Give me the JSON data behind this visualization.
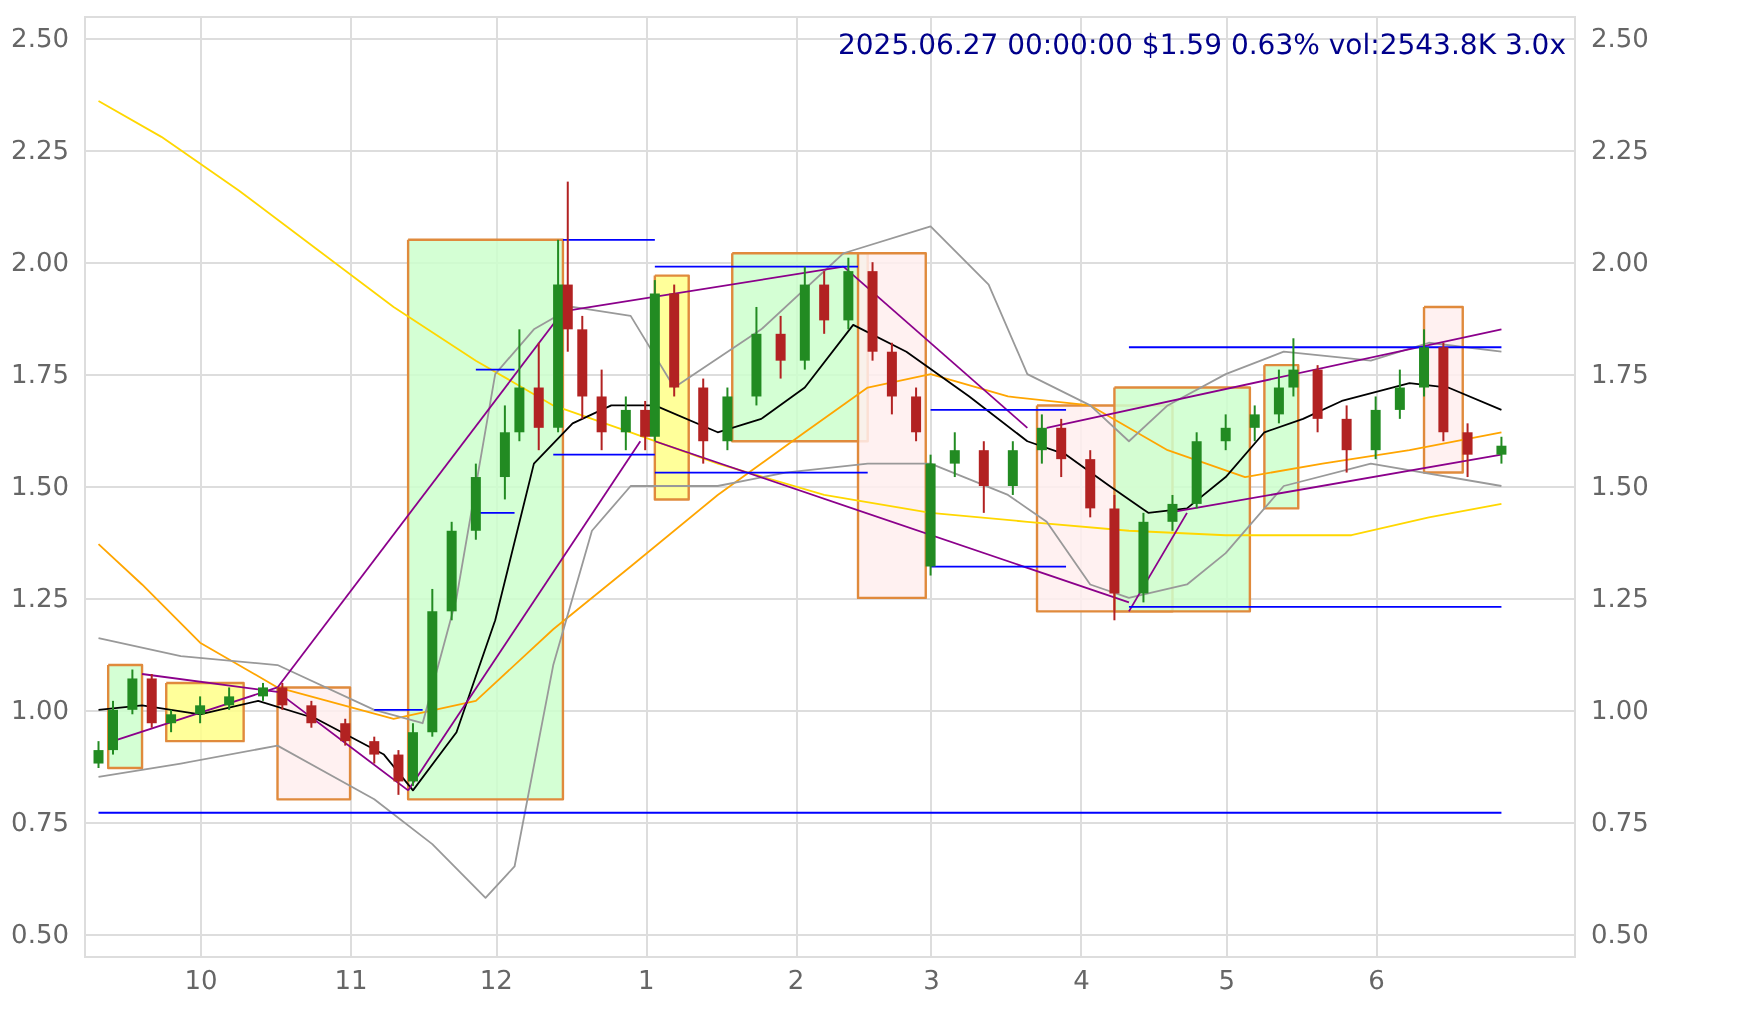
{
  "chart_data": {
    "type": "candlestick",
    "title": "2025.06.27 00:00:00 $1.59 0.63% vol:2543.8K 3.0x",
    "x": [
      "2024-09-10",
      "2024-09-13",
      "2024-09-17",
      "2024-09-21",
      "2024-09-25",
      "2024-10-01",
      "2024-10-07",
      "2024-10-14",
      "2024-10-18",
      "2024-10-24",
      "2024-10-31",
      "2024-11-06",
      "2024-11-11",
      "2024-11-14",
      "2024-11-18",
      "2024-11-22",
      "2024-11-27",
      "2024-12-03",
      "2024-12-06",
      "2024-12-10",
      "2024-12-14",
      "2024-12-16",
      "2024-12-19",
      "2024-12-23",
      "2024-12-28",
      "2025-01-01",
      "2025-01-03",
      "2025-01-07",
      "2025-01-13",
      "2025-01-18",
      "2025-01-24",
      "2025-01-29",
      "2025-02-03",
      "2025-02-07",
      "2025-02-12",
      "2025-02-17",
      "2025-02-21",
      "2025-02-26",
      "2025-03-01",
      "2025-03-06",
      "2025-03-12",
      "2025-03-18",
      "2025-03-24",
      "2025-03-28",
      "2025-04-03",
      "2025-04-08",
      "2025-04-14",
      "2025-04-20",
      "2025-04-25",
      "2025-05-01",
      "2025-05-07",
      "2025-05-12",
      "2025-05-15",
      "2025-05-20",
      "2025-05-26",
      "2025-06-01",
      "2025-06-06",
      "2025-06-11",
      "2025-06-15",
      "2025-06-20",
      "2025-06-27"
    ],
    "ohlc": [
      [
        0.88,
        0.93,
        0.87,
        0.91
      ],
      [
        0.91,
        1.02,
        0.9,
        1.0
      ],
      [
        1.0,
        1.09,
        0.99,
        1.07
      ],
      [
        1.07,
        1.08,
        0.96,
        0.97
      ],
      [
        0.97,
        1.0,
        0.95,
        0.99
      ],
      [
        0.99,
        1.03,
        0.97,
        1.01
      ],
      [
        1.01,
        1.05,
        1.0,
        1.03
      ],
      [
        1.03,
        1.06,
        1.02,
        1.05
      ],
      [
        1.05,
        1.06,
        1.0,
        1.01
      ],
      [
        1.01,
        1.02,
        0.96,
        0.97
      ],
      [
        0.97,
        0.98,
        0.92,
        0.93
      ],
      [
        0.93,
        0.94,
        0.88,
        0.9
      ],
      [
        0.9,
        0.91,
        0.81,
        0.84
      ],
      [
        0.84,
        0.97,
        0.83,
        0.95
      ],
      [
        0.95,
        1.27,
        0.94,
        1.22
      ],
      [
        1.22,
        1.42,
        1.2,
        1.4
      ],
      [
        1.4,
        1.55,
        1.38,
        1.52
      ],
      [
        1.52,
        1.68,
        1.47,
        1.62
      ],
      [
        1.62,
        1.85,
        1.6,
        1.72
      ],
      [
        1.72,
        1.82,
        1.58,
        1.63
      ],
      [
        1.63,
        2.05,
        1.62,
        1.95
      ],
      [
        1.95,
        2.18,
        1.8,
        1.85
      ],
      [
        1.85,
        1.88,
        1.65,
        1.7
      ],
      [
        1.7,
        1.76,
        1.58,
        1.62
      ],
      [
        1.62,
        1.7,
        1.58,
        1.67
      ],
      [
        1.67,
        1.69,
        1.58,
        1.61
      ],
      [
        1.61,
        1.96,
        1.6,
        1.93
      ],
      [
        1.93,
        1.95,
        1.7,
        1.72
      ],
      [
        1.72,
        1.74,
        1.55,
        1.6
      ],
      [
        1.6,
        1.72,
        1.58,
        1.7
      ],
      [
        1.7,
        1.9,
        1.68,
        1.84
      ],
      [
        1.84,
        1.88,
        1.74,
        1.78
      ],
      [
        1.78,
        1.99,
        1.76,
        1.95
      ],
      [
        1.95,
        1.98,
        1.84,
        1.87
      ],
      [
        1.87,
        2.01,
        1.85,
        1.98
      ],
      [
        1.98,
        2.0,
        1.78,
        1.8
      ],
      [
        1.8,
        1.82,
        1.66,
        1.7
      ],
      [
        1.7,
        1.72,
        1.6,
        1.62
      ],
      [
        1.32,
        1.57,
        1.3,
        1.55
      ],
      [
        1.55,
        1.62,
        1.52,
        1.58
      ],
      [
        1.58,
        1.6,
        1.44,
        1.5
      ],
      [
        1.5,
        1.6,
        1.48,
        1.58
      ],
      [
        1.58,
        1.66,
        1.55,
        1.63
      ],
      [
        1.63,
        1.65,
        1.52,
        1.56
      ],
      [
        1.56,
        1.58,
        1.43,
        1.45
      ],
      [
        1.45,
        1.48,
        1.2,
        1.26
      ],
      [
        1.26,
        1.44,
        1.24,
        1.42
      ],
      [
        1.42,
        1.48,
        1.4,
        1.46
      ],
      [
        1.46,
        1.62,
        1.45,
        1.6
      ],
      [
        1.6,
        1.66,
        1.58,
        1.63
      ],
      [
        1.63,
        1.68,
        1.6,
        1.66
      ],
      [
        1.66,
        1.76,
        1.64,
        1.72
      ],
      [
        1.72,
        1.83,
        1.7,
        1.76
      ],
      [
        1.76,
        1.77,
        1.62,
        1.65
      ],
      [
        1.65,
        1.68,
        1.53,
        1.58
      ],
      [
        1.58,
        1.7,
        1.56,
        1.67
      ],
      [
        1.67,
        1.76,
        1.65,
        1.72
      ],
      [
        1.72,
        1.85,
        1.7,
        1.81
      ],
      [
        1.81,
        1.82,
        1.6,
        1.62
      ],
      [
        1.62,
        1.64,
        1.52,
        1.57
      ],
      [
        1.57,
        1.61,
        1.55,
        1.59
      ]
    ],
    "colors": [
      "#228b22",
      "#228b22",
      "#228b22",
      "#b22222",
      "#228b22",
      "#228b22",
      "#228b22",
      "#228b22",
      "#b22222",
      "#b22222",
      "#b22222",
      "#b22222",
      "#b22222",
      "#228b22",
      "#228b22",
      "#228b22",
      "#228b22",
      "#228b22",
      "#228b22",
      "#b22222",
      "#228b22",
      "#b22222",
      "#b22222",
      "#b22222",
      "#228b22",
      "#b22222",
      "#228b22",
      "#b22222",
      "#b22222",
      "#228b22",
      "#228b22",
      "#b22222",
      "#228b22",
      "#b22222",
      "#228b22",
      "#b22222",
      "#b22222",
      "#b22222",
      "#228b22",
      "#228b22",
      "#b22222",
      "#228b22",
      "#228b22",
      "#b22222",
      "#b22222",
      "#b22222",
      "#228b22",
      "#228b22",
      "#228b22",
      "#228b22",
      "#228b22",
      "#228b22",
      "#228b22",
      "#b22222",
      "#b22222",
      "#228b22",
      "#228b22",
      "#228b22",
      "#b22222",
      "#b22222",
      "#228b22"
    ],
    "series": [
      {
        "type": "area",
        "color": "#ccffcc",
        "x": [
          "2024-09-12",
          "2024-09-19",
          "2024-09-19",
          "2024-09-12",
          "2024-09-12"
        ],
        "values": [
          1.1,
          1.1,
          0.87,
          0.87,
          1.1
        ]
      },
      {
        "type": "area",
        "color": "#ffff88",
        "x": [
          "2024-09-24",
          "2024-10-10",
          "2024-10-10",
          "2024-09-24",
          "2024-09-24"
        ],
        "values": [
          1.06,
          1.06,
          0.93,
          0.93,
          1.06
        ]
      },
      {
        "type": "area",
        "color": "#ffeeee",
        "x": [
          "2024-10-17",
          "2024-11-01",
          "2024-11-01",
          "2024-10-17",
          "2024-10-17"
        ],
        "values": [
          1.05,
          1.05,
          0.8,
          0.8,
          1.05
        ]
      },
      {
        "type": "area",
        "color": "#ccffcc",
        "x": [
          "2024-11-13",
          "2024-12-15",
          "2024-12-15",
          "2024-11-13",
          "2024-11-13"
        ],
        "values": [
          2.05,
          2.05,
          0.8,
          0.8,
          2.05
        ]
      },
      {
        "type": "area",
        "color": "#ffff88",
        "x": [
          "2025-01-03",
          "2025-01-10",
          "2025-01-10",
          "2025-01-03",
          "2025-01-03"
        ],
        "values": [
          1.97,
          1.97,
          1.47,
          1.47,
          1.97
        ]
      },
      {
        "type": "area",
        "color": "#ccffcc",
        "x": [
          "2025-01-19",
          "2025-02-16",
          "2025-02-16",
          "2025-01-19",
          "2025-01-19"
        ],
        "values": [
          2.02,
          2.02,
          1.6,
          1.6,
          2.02
        ]
      },
      {
        "type": "area",
        "color": "#ffeeee",
        "x": [
          "2025-02-14",
          "2025-02-28",
          "2025-02-28",
          "2025-02-14",
          "2025-02-14"
        ],
        "values": [
          2.02,
          2.02,
          1.25,
          1.25,
          2.02
        ]
      },
      {
        "type": "area",
        "color": "#ffeeee",
        "x": [
          "2025-03-23",
          "2025-04-20",
          "2025-04-20",
          "2025-03-23",
          "2025-03-23"
        ],
        "values": [
          1.68,
          1.68,
          1.22,
          1.22,
          1.68
        ]
      },
      {
        "type": "area",
        "color": "#ccffcc",
        "x": [
          "2025-04-08",
          "2025-05-06",
          "2025-05-06",
          "2025-04-08",
          "2025-04-08"
        ],
        "values": [
          1.72,
          1.72,
          1.22,
          1.22,
          1.72
        ]
      },
      {
        "type": "area",
        "color": "#ccffcc",
        "x": [
          "2025-05-09",
          "2025-05-16",
          "2025-05-16",
          "2025-05-09",
          "2025-05-09"
        ],
        "values": [
          1.77,
          1.77,
          1.45,
          1.45,
          1.77
        ]
      },
      {
        "type": "area",
        "color": "#ffeeee",
        "x": [
          "2025-06-11",
          "2025-06-19",
          "2025-06-19",
          "2025-06-11",
          "2025-06-11"
        ],
        "values": [
          1.9,
          1.9,
          1.53,
          1.53,
          1.9
        ]
      },
      {
        "type": "line",
        "color": "#ffd700",
        "x": [
          "2024-09-10",
          "2024-09-23",
          "2024-10-09",
          "2024-10-25",
          "2024-11-10",
          "2024-11-27",
          "2024-12-13",
          "2024-12-29",
          "2025-01-16",
          "2025-02-07",
          "2025-03-01",
          "2025-03-21",
          "2025-04-11",
          "2025-05-01",
          "2025-05-27",
          "2025-06-12",
          "2025-06-27"
        ],
        "values": [
          2.36,
          2.28,
          2.16,
          2.03,
          1.9,
          1.78,
          1.68,
          1.62,
          1.55,
          1.48,
          1.44,
          1.42,
          1.4,
          1.39,
          1.39,
          1.43,
          1.46
        ]
      },
      {
        "type": "line",
        "color": "#ffa500",
        "x": [
          "2024-09-10",
          "2024-09-19",
          "2024-10-01",
          "2024-10-17",
          "2024-11-10",
          "2024-11-27",
          "2024-12-13",
          "2024-12-29",
          "2025-01-16",
          "2025-02-03",
          "2025-02-16",
          "2025-03-01",
          "2025-03-17",
          "2025-04-03",
          "2025-04-19",
          "2025-05-05",
          "2025-05-21",
          "2025-06-08",
          "2025-06-27"
        ],
        "values": [
          1.37,
          1.28,
          1.15,
          1.05,
          0.98,
          1.02,
          1.18,
          1.32,
          1.48,
          1.62,
          1.72,
          1.75,
          1.7,
          1.68,
          1.58,
          1.52,
          1.55,
          1.58,
          1.62
        ]
      },
      {
        "type": "line",
        "color": "#999999",
        "x": [
          "2024-09-10",
          "2024-09-27",
          "2024-10-17",
          "2024-11-06",
          "2024-11-16",
          "2024-11-23",
          "2024-12-01",
          "2024-12-09",
          "2024-12-17",
          "2024-12-29",
          "2025-01-07",
          "2025-01-25",
          "2025-02-11",
          "2025-03-01",
          "2025-03-13",
          "2025-03-21",
          "2025-04-03",
          "2025-04-11",
          "2025-04-19",
          "2025-05-01",
          "2025-05-13",
          "2025-05-31",
          "2025-06-12",
          "2025-06-27"
        ],
        "values": [
          1.16,
          1.12,
          1.1,
          1.0,
          0.97,
          1.25,
          1.75,
          1.85,
          1.9,
          1.88,
          1.72,
          1.85,
          2.02,
          2.08,
          1.95,
          1.75,
          1.68,
          1.6,
          1.68,
          1.75,
          1.8,
          1.78,
          1.82,
          1.8
        ]
      },
      {
        "type": "line",
        "color": "#999999",
        "x": [
          "2024-09-10",
          "2024-09-27",
          "2024-10-17",
          "2024-11-06",
          "2024-11-18",
          "2024-11-29",
          "2024-12-05",
          "2024-12-13",
          "2024-12-21",
          "2024-12-29",
          "2025-01-16",
          "2025-01-30",
          "2025-02-16",
          "2025-03-01",
          "2025-03-17",
          "2025-03-25",
          "2025-04-03",
          "2025-04-11",
          "2025-04-23",
          "2025-05-01",
          "2025-05-13",
          "2025-05-31",
          "2025-06-27"
        ],
        "values": [
          0.85,
          0.88,
          0.92,
          0.8,
          0.7,
          0.58,
          0.65,
          1.1,
          1.4,
          1.5,
          1.5,
          1.53,
          1.55,
          1.55,
          1.48,
          1.42,
          1.28,
          1.25,
          1.28,
          1.35,
          1.5,
          1.55,
          1.5
        ]
      },
      {
        "type": "line",
        "color": "#000000",
        "x": [
          "2024-09-10",
          "2024-09-19",
          "2024-10-01",
          "2024-10-13",
          "2024-10-25",
          "2024-11-08",
          "2024-11-14",
          "2024-11-23",
          "2024-12-01",
          "2024-12-09",
          "2024-12-17",
          "2024-12-25",
          "2025-01-03",
          "2025-01-16",
          "2025-01-25",
          "2025-02-03",
          "2025-02-13",
          "2025-02-24",
          "2025-03-09",
          "2025-03-21",
          "2025-03-29",
          "2025-04-07",
          "2025-04-15",
          "2025-04-23",
          "2025-05-01",
          "2025-05-09",
          "2025-05-17",
          "2025-05-25",
          "2025-06-08",
          "2025-06-16",
          "2025-06-27"
        ],
        "values": [
          1.0,
          1.01,
          0.99,
          1.02,
          0.98,
          0.9,
          0.82,
          0.95,
          1.2,
          1.55,
          1.64,
          1.68,
          1.68,
          1.62,
          1.65,
          1.72,
          1.86,
          1.8,
          1.7,
          1.6,
          1.57,
          1.5,
          1.44,
          1.45,
          1.52,
          1.62,
          1.65,
          1.69,
          1.73,
          1.72,
          1.67
        ]
      },
      {
        "type": "line",
        "color": "#8b008b",
        "x": [
          "2024-09-13",
          "2024-10-17"
        ],
        "values": [
          0.93,
          1.05
        ]
      },
      {
        "type": "line",
        "color": "#8b008b",
        "x": [
          "2024-10-17",
          "2024-12-15"
        ],
        "values": [
          1.05,
          1.89
        ]
      },
      {
        "type": "line",
        "color": "#8b008b",
        "x": [
          "2024-12-15",
          "2025-02-11"
        ],
        "values": [
          1.89,
          1.99
        ]
      },
      {
        "type": "line",
        "color": "#8b008b",
        "x": [
          "2025-02-11",
          "2025-03-21"
        ],
        "values": [
          1.99,
          1.63
        ]
      },
      {
        "type": "line",
        "color": "#8b008b",
        "x": [
          "2024-09-19",
          "2024-10-17",
          "2024-11-13"
        ],
        "values": [
          1.08,
          1.04,
          0.82
        ]
      },
      {
        "type": "line",
        "color": "#8b008b",
        "x": [
          "2024-11-13",
          "2024-12-31"
        ],
        "values": [
          0.82,
          1.6
        ]
      },
      {
        "type": "line",
        "color": "#8b008b",
        "x": [
          "2025-01-03",
          "2025-04-11"
        ],
        "values": [
          1.6,
          1.24
        ]
      },
      {
        "type": "line",
        "color": "#8b008b",
        "x": [
          "2025-04-11",
          "2025-04-23"
        ],
        "values": [
          1.22,
          1.44
        ]
      },
      {
        "type": "line",
        "color": "#8b008b",
        "x": [
          "2025-03-25",
          "2025-06-27"
        ],
        "values": [
          1.63,
          1.85
        ]
      },
      {
        "type": "line",
        "color": "#8b008b",
        "x": [
          "2025-04-19",
          "2025-06-27"
        ],
        "values": [
          1.44,
          1.57
        ]
      },
      {
        "type": "line",
        "color": "#0000ff",
        "x": [
          "2024-11-06",
          "2024-11-16"
        ],
        "values": [
          1.0,
          1.0
        ]
      },
      {
        "type": "line",
        "color": "#0000ff",
        "x": [
          "2024-11-27",
          "2024-12-05"
        ],
        "values": [
          1.76,
          1.76
        ]
      },
      {
        "type": "line",
        "color": "#0000ff",
        "x": [
          "2024-11-27",
          "2024-12-05"
        ],
        "values": [
          1.44,
          1.44
        ]
      },
      {
        "type": "line",
        "color": "#0000ff",
        "x": [
          "2024-12-15",
          "2025-01-03"
        ],
        "values": [
          2.05,
          2.05
        ]
      },
      {
        "type": "line",
        "color": "#0000ff",
        "x": [
          "2024-12-13",
          "2025-01-03"
        ],
        "values": [
          1.57,
          1.57
        ]
      },
      {
        "type": "line",
        "color": "#0000ff",
        "x": [
          "2025-01-03",
          "2025-02-14"
        ],
        "values": [
          1.99,
          1.99
        ]
      },
      {
        "type": "line",
        "color": "#0000ff",
        "x": [
          "2025-01-03",
          "2025-02-16"
        ],
        "values": [
          1.53,
          1.53
        ]
      },
      {
        "type": "line",
        "color": "#0000ff",
        "x": [
          "2025-03-01",
          "2025-03-29"
        ],
        "values": [
          1.67,
          1.67
        ]
      },
      {
        "type": "line",
        "color": "#0000ff",
        "x": [
          "2025-03-01",
          "2025-03-29"
        ],
        "values": [
          1.32,
          1.32
        ]
      },
      {
        "type": "line",
        "color": "#0000ff",
        "x": [
          "2025-04-11",
          "2025-06-27"
        ],
        "values": [
          1.81,
          1.81
        ]
      },
      {
        "type": "line",
        "color": "#0000ff",
        "x": [
          "2025-04-11",
          "2025-06-27"
        ],
        "values": [
          1.23,
          1.23
        ]
      },
      {
        "type": "line",
        "color": "#0000ff",
        "x": [
          "2024-09-10",
          "2025-06-27"
        ],
        "values": [
          0.77,
          0.77
        ]
      }
    ],
    "xlim": [
      "2024-09-07",
      "2025-07-12"
    ],
    "xticks": [
      {
        "value": "2024-10-01",
        "label": "10"
      },
      {
        "value": "2024-11-01",
        "label": "11"
      },
      {
        "value": "2024-12-01",
        "label": "12"
      },
      {
        "value": "2025-01-01",
        "label": "1"
      },
      {
        "value": "2025-02-01",
        "label": "2"
      },
      {
        "value": "2025-03-01",
        "label": "3"
      },
      {
        "value": "2025-04-01",
        "label": "4"
      },
      {
        "value": "2025-05-01",
        "label": "5"
      },
      {
        "value": "2025-06-01",
        "label": "6"
      }
    ],
    "ylim": [
      0.45,
      2.55
    ],
    "yticks": [
      {
        "value": 0.5,
        "label": "0.50"
      },
      {
        "value": 0.75,
        "label": "0.75"
      },
      {
        "value": 1.0,
        "label": "1.00"
      },
      {
        "value": 1.25,
        "label": "1.25"
      },
      {
        "value": 1.5,
        "label": "1.50"
      },
      {
        "value": 1.75,
        "label": "1.75"
      },
      {
        "value": 2.0,
        "label": "2.00"
      },
      {
        "value": 2.25,
        "label": "2.25"
      },
      {
        "value": 2.5,
        "label": "2.50"
      }
    ],
    "y2lim": [
      0.45,
      2.55
    ],
    "y2ticks": [
      {
        "value": 0.5,
        "label": "0.50"
      },
      {
        "value": 0.75,
        "label": "0.75"
      },
      {
        "value": 1.0,
        "label": "1.00"
      },
      {
        "value": 1.25,
        "label": "1.25"
      },
      {
        "value": 1.5,
        "label": "1.50"
      },
      {
        "value": 1.75,
        "label": "1.75"
      },
      {
        "value": 2.0,
        "label": "2.00"
      },
      {
        "value": 2.25,
        "label": "2.25"
      },
      {
        "value": 2.5,
        "label": "2.50"
      }
    ],
    "grid": true
  }
}
